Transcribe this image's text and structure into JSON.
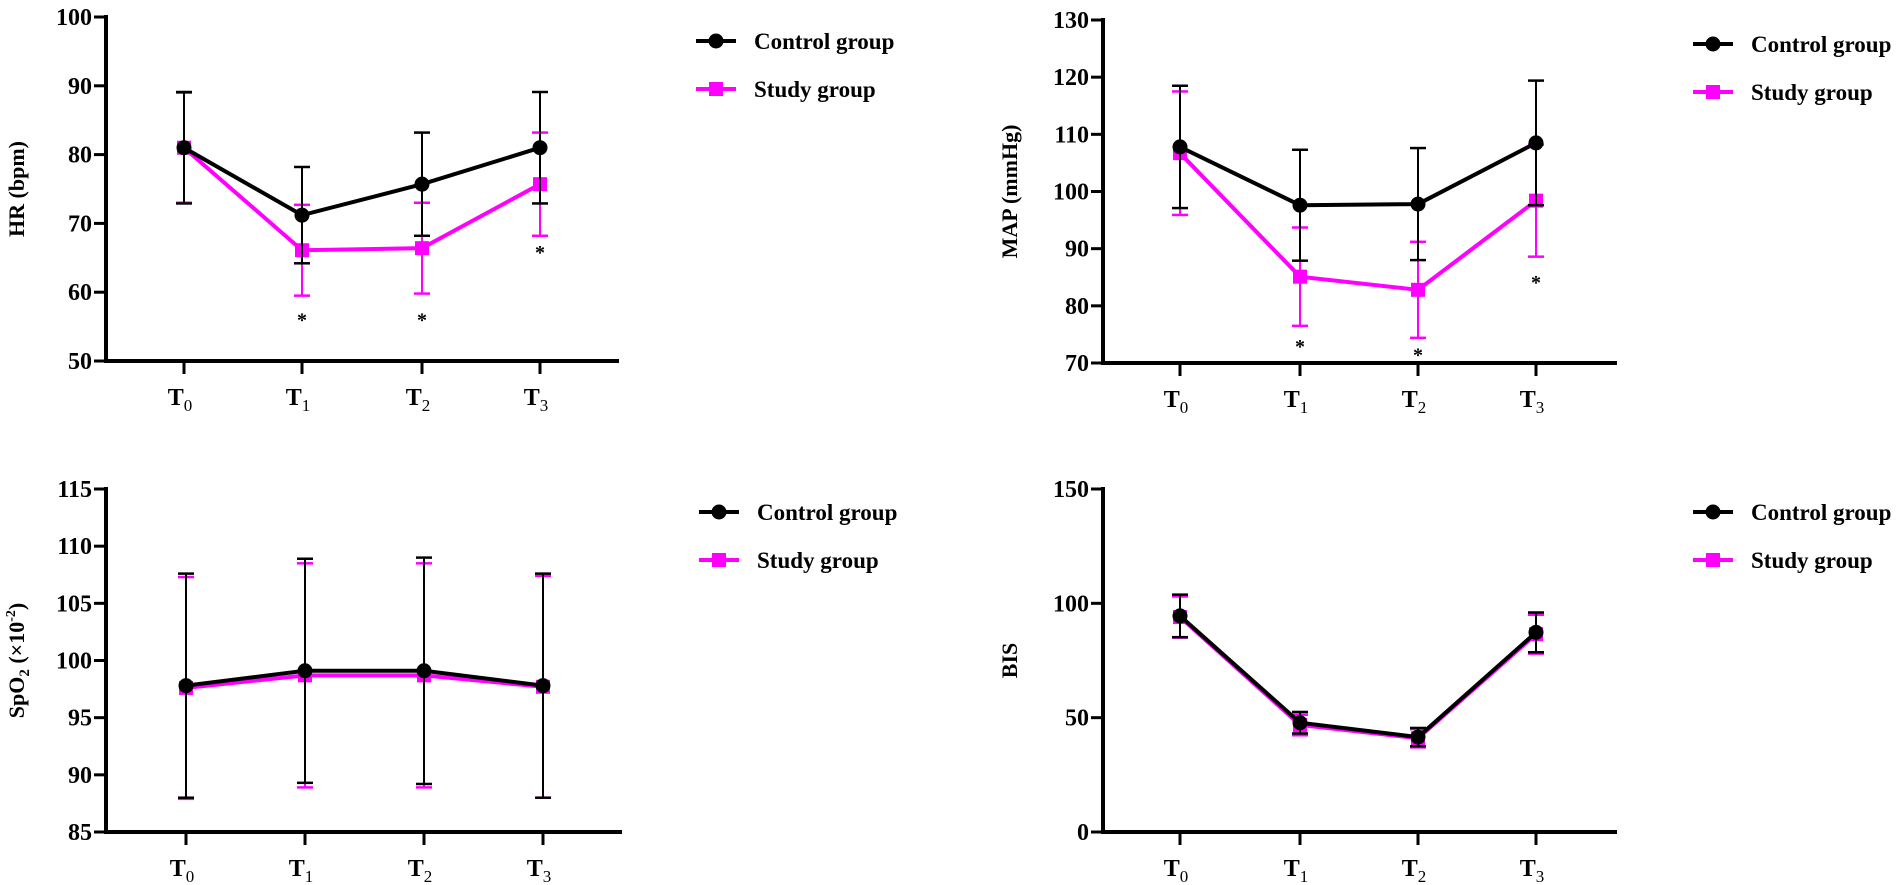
{
  "colors": {
    "control": "#000000",
    "study": "#ff00ff",
    "axis": "#000000"
  },
  "legend": {
    "control": "Control group",
    "study": "Study group"
  },
  "chart_data": [
    {
      "id": "hr",
      "type": "line",
      "ylabel": {
        "main": "HR (bpm)",
        "sub": "",
        "rest": "",
        "sup": "",
        "end": ""
      },
      "ylim": [
        50,
        100
      ],
      "yticks": [
        50,
        60,
        70,
        80,
        90,
        100
      ],
      "categories": [
        {
          "base": "T",
          "sub": "0"
        },
        {
          "base": "T",
          "sub": "1"
        },
        {
          "base": "T",
          "sub": "2"
        },
        {
          "base": "T",
          "sub": "3"
        }
      ],
      "series": [
        {
          "name": "Control group",
          "key": "control",
          "values": [
            81.0,
            71.2,
            75.7,
            81.0
          ],
          "errors": [
            8.1,
            7.0,
            7.5,
            8.1
          ]
        },
        {
          "name": "Study group",
          "key": "study",
          "values": [
            81.0,
            66.1,
            66.4,
            75.7
          ],
          "errors": [
            8.0,
            6.6,
            6.6,
            7.5
          ]
        }
      ],
      "annotations": [
        {
          "category": 1,
          "y": 56.5,
          "text": "*"
        },
        {
          "category": 2,
          "y": 56.5,
          "text": "*"
        },
        {
          "category": 3,
          "y": 66.3,
          "text": "*"
        }
      ],
      "legend_position": "top-right outside"
    },
    {
      "id": "map",
      "type": "line",
      "ylabel": {
        "main": "MAP (mmHg)",
        "sub": "",
        "rest": "",
        "sup": "",
        "end": ""
      },
      "ylim": [
        70,
        130
      ],
      "yticks": [
        70,
        80,
        90,
        100,
        110,
        120,
        130
      ],
      "categories": [
        {
          "base": "T",
          "sub": "0"
        },
        {
          "base": "T",
          "sub": "1"
        },
        {
          "base": "T",
          "sub": "2"
        },
        {
          "base": "T",
          "sub": "3"
        }
      ],
      "series": [
        {
          "name": "Control group",
          "key": "control",
          "values": [
            107.8,
            97.6,
            97.8,
            108.5
          ],
          "errors": [
            10.7,
            9.7,
            9.8,
            10.9
          ]
        },
        {
          "name": "Study group",
          "key": "study",
          "values": [
            106.7,
            85.1,
            82.8,
            98.4
          ],
          "errors": [
            10.8,
            8.6,
            8.4,
            9.8
          ]
        }
      ],
      "annotations": [
        {
          "category": 1,
          "y": 73.5,
          "text": "*"
        },
        {
          "category": 2,
          "y": 72.0,
          "text": "*"
        },
        {
          "category": 3,
          "y": 84.7,
          "text": "*"
        }
      ],
      "legend_position": "top-right outside"
    },
    {
      "id": "spo2",
      "type": "line",
      "ylabel": {
        "main": "SpO",
        "sub": "2",
        "rest": " (×10",
        "sup": "-2",
        "end": ")"
      },
      "ylim": [
        85,
        115
      ],
      "yticks": [
        85,
        90,
        95,
        100,
        105,
        110,
        115
      ],
      "categories": [
        {
          "base": "T",
          "sub": "0"
        },
        {
          "base": "T",
          "sub": "1"
        },
        {
          "base": "T",
          "sub": "2"
        },
        {
          "base": "T",
          "sub": "3"
        }
      ],
      "series": [
        {
          "name": "Control group",
          "key": "control",
          "values": [
            97.8,
            99.1,
            99.1,
            97.8
          ],
          "errors": [
            9.8,
            9.8,
            9.9,
            9.8
          ]
        },
        {
          "name": "Study group",
          "key": "study",
          "values": [
            97.6,
            98.7,
            98.7,
            97.7
          ],
          "errors": [
            9.7,
            9.8,
            9.8,
            9.7
          ]
        }
      ],
      "annotations": [],
      "legend_position": "top-right outside"
    },
    {
      "id": "bis",
      "type": "line",
      "ylabel": {
        "main": "BIS",
        "sub": "",
        "rest": "",
        "sup": "",
        "end": ""
      },
      "ylim": [
        0,
        150
      ],
      "yticks": [
        0,
        50,
        100,
        150
      ],
      "categories": [
        {
          "base": "T",
          "sub": "0"
        },
        {
          "base": "T",
          "sub": "1"
        },
        {
          "base": "T",
          "sub": "2"
        },
        {
          "base": "T",
          "sub": "3"
        }
      ],
      "series": [
        {
          "name": "Control group",
          "key": "control",
          "values": [
            94.5,
            47.8,
            41.5,
            87.3
          ],
          "errors": [
            9.3,
            4.7,
            4.0,
            8.7
          ]
        },
        {
          "name": "Study group",
          "key": "study",
          "values": [
            94.0,
            46.8,
            41.0,
            86.5
          ],
          "errors": [
            9.0,
            4.5,
            4.0,
            8.5
          ]
        }
      ],
      "annotations": [],
      "legend_position": "top-right outside"
    }
  ]
}
